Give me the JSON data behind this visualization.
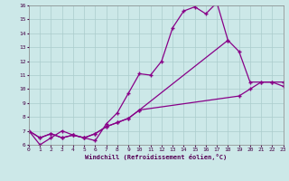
{
  "title": "",
  "xlabel": "Windchill (Refroidissement éolien,°C)",
  "background_color": "#cce8e8",
  "grid_color": "#aacccc",
  "line_color": "#880088",
  "xlim": [
    0,
    23
  ],
  "ylim": [
    6,
    16
  ],
  "yticks": [
    6,
    7,
    8,
    9,
    10,
    11,
    12,
    13,
    14,
    15,
    16
  ],
  "xticks": [
    0,
    1,
    2,
    3,
    4,
    5,
    6,
    7,
    8,
    9,
    10,
    11,
    12,
    13,
    14,
    15,
    16,
    17,
    18,
    19,
    20,
    21,
    22,
    23
  ],
  "s1_x": [
    0,
    1,
    2,
    3,
    4,
    5,
    6,
    7,
    8,
    9,
    10,
    11,
    12,
    13,
    14,
    15,
    16,
    17,
    18
  ],
  "s1_y": [
    7.0,
    6.0,
    6.5,
    7.0,
    6.7,
    6.5,
    6.3,
    7.5,
    8.3,
    9.7,
    11.1,
    11.0,
    12.0,
    14.4,
    15.6,
    15.9,
    15.4,
    16.2,
    13.5
  ],
  "s2_x": [
    0,
    1,
    2,
    3,
    4,
    5,
    6,
    7,
    8,
    9,
    10,
    19,
    20,
    21,
    22,
    23
  ],
  "s2_y": [
    7.0,
    6.5,
    6.8,
    6.5,
    6.7,
    6.5,
    6.8,
    7.3,
    7.6,
    7.9,
    8.5,
    9.5,
    10.0,
    10.5,
    10.5,
    10.5
  ],
  "s3_x": [
    0,
    1,
    2,
    3,
    4,
    5,
    6,
    7,
    8,
    9,
    10,
    18,
    19,
    20,
    21,
    22,
    23
  ],
  "s3_y": [
    7.0,
    6.5,
    6.8,
    6.5,
    6.7,
    6.5,
    6.8,
    7.3,
    7.6,
    7.9,
    8.5,
    13.5,
    12.7,
    10.5,
    10.5,
    10.5,
    10.2
  ]
}
